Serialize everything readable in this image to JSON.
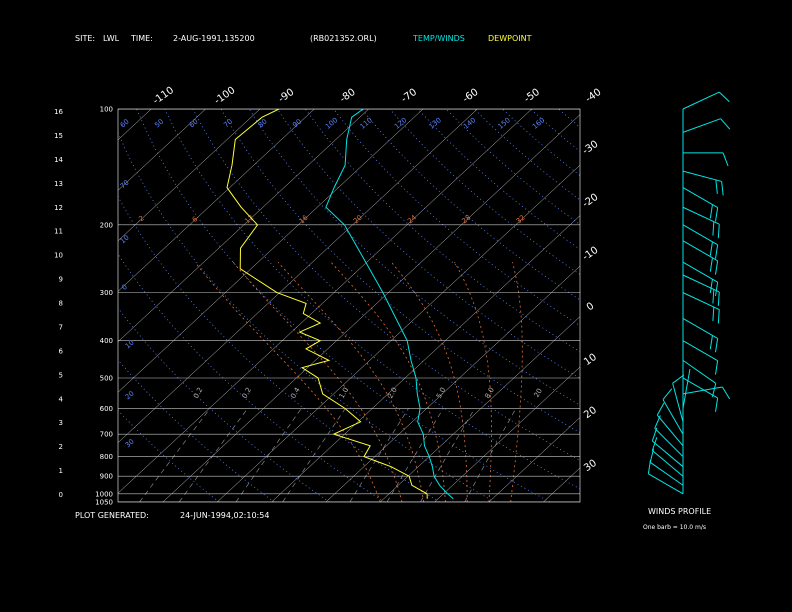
{
  "header": {
    "site_label": "SITE:",
    "site": "LWL",
    "time_label": "TIME:",
    "time": "2-AUG-1991,135200",
    "file": "(RB021352.ORL)",
    "temp_legend": "TEMP/WINDS",
    "dew_legend": "DEWPOINT"
  },
  "footer": {
    "generated_label": "PLOT GENERATED:",
    "generated": "24-JUN-1994,02:10:54",
    "winds_title": "WINDS PROFILE",
    "barb_note": "One barb = 10.0 m/s"
  },
  "colors": {
    "background": "#000000",
    "temp": "#00e5e5",
    "dewpoint": "#ffff33",
    "isobar": "#c8c8c8",
    "isotherm": "#c8c8c8",
    "dry_adiabat": "#5b84ff",
    "moist_adiabat": "#e07038",
    "mixing_ratio": "#9a9a9a",
    "text": "#ffffff"
  },
  "chart_data": {
    "type": "line",
    "pressure_ticks": [
      "100",
      "200",
      "300",
      "400",
      "500",
      "600",
      "700",
      "800",
      "900",
      "1000",
      "1050"
    ],
    "height_ticks": [
      "16",
      "15",
      "14",
      "13",
      "12",
      "11",
      "10",
      "9",
      "8",
      "7",
      "6",
      "5",
      "4",
      "3",
      "2",
      "1",
      "0"
    ],
    "isotherm_labels": [
      "-110",
      "-100",
      "-90",
      "-80",
      "-70",
      "-60",
      "-50",
      "-40"
    ],
    "right_temp_labels": [
      "-30",
      "-20",
      "-10",
      "0",
      "10",
      "20",
      "30"
    ],
    "dry_adiabat_labels": [
      "60",
      "50",
      "60",
      "70",
      "80",
      "90",
      "100",
      "110",
      "120",
      "130",
      "140",
      "150",
      "160",
      "70",
      "10",
      "0",
      "10",
      "20",
      "30"
    ],
    "moist_adiabat_labels": [
      "-2",
      "6",
      "12",
      "16",
      "20",
      "24",
      "28",
      "32"
    ],
    "mixing_ratio_labels": [
      "0.2",
      "0.2",
      "0.4",
      "1.0",
      "2.0",
      "5.0",
      "8.0",
      "20"
    ],
    "series": [
      {
        "name": "TEMP/WINDS",
        "values": [
          {
            "p": 1030,
            "t": 22.8
          },
          {
            "p": 1000,
            "t": 20.8
          },
          {
            "p": 950,
            "t": 17.6
          },
          {
            "p": 900,
            "t": 14.8
          },
          {
            "p": 850,
            "t": 12.6
          },
          {
            "p": 800,
            "t": 10.0
          },
          {
            "p": 750,
            "t": 7.0
          },
          {
            "p": 700,
            "t": 4.5
          },
          {
            "p": 650,
            "t": 1.0
          },
          {
            "p": 600,
            "t": -1.2
          },
          {
            "p": 550,
            "t": -4.6
          },
          {
            "p": 500,
            "t": -8.0
          },
          {
            "p": 450,
            "t": -12.4
          },
          {
            "p": 400,
            "t": -17.0
          },
          {
            "p": 350,
            "t": -23.5
          },
          {
            "p": 300,
            "t": -31.0
          },
          {
            "p": 250,
            "t": -40.2
          },
          {
            "p": 200,
            "t": -51.5
          },
          {
            "p": 180,
            "t": -58.4
          },
          {
            "p": 160,
            "t": -60.8
          },
          {
            "p": 140,
            "t": -63.2
          },
          {
            "p": 120,
            "t": -68.0
          },
          {
            "p": 105,
            "t": -71.5
          },
          {
            "p": 100,
            "t": -71.0
          }
        ]
      },
      {
        "name": "DEWPOINT",
        "values": [
          {
            "p": 1030,
            "t": 18.0
          },
          {
            "p": 1000,
            "t": 17.0
          },
          {
            "p": 950,
            "t": 12.5
          },
          {
            "p": 900,
            "t": 10.2
          },
          {
            "p": 850,
            "t": 5.0
          },
          {
            "p": 800,
            "t": -2.0
          },
          {
            "p": 750,
            "t": -3.0
          },
          {
            "p": 700,
            "t": -12.0
          },
          {
            "p": 650,
            "t": -9.5
          },
          {
            "p": 600,
            "t": -15.0
          },
          {
            "p": 550,
            "t": -22.0
          },
          {
            "p": 500,
            "t": -26.0
          },
          {
            "p": 470,
            "t": -31.0
          },
          {
            "p": 450,
            "t": -27.5
          },
          {
            "p": 420,
            "t": -34.0
          },
          {
            "p": 400,
            "t": -33.0
          },
          {
            "p": 380,
            "t": -38.5
          },
          {
            "p": 360,
            "t": -36.5
          },
          {
            "p": 340,
            "t": -41.5
          },
          {
            "p": 320,
            "t": -43.0
          },
          {
            "p": 300,
            "t": -50.5
          },
          {
            "p": 260,
            "t": -62.0
          },
          {
            "p": 230,
            "t": -66.0
          },
          {
            "p": 200,
            "t": -67.5
          },
          {
            "p": 180,
            "t": -74.0
          },
          {
            "p": 160,
            "t": -80.5
          },
          {
            "p": 140,
            "t": -84.0
          },
          {
            "p": 120,
            "t": -88.5
          },
          {
            "p": 105,
            "t": -88.0
          },
          {
            "p": 100,
            "t": -86.5
          }
        ]
      }
    ],
    "winds": [
      {
        "p": 1000,
        "dir": 120,
        "speed": 9
      },
      {
        "p": 950,
        "dir": 125,
        "speed": 10
      },
      {
        "p": 900,
        "dir": 130,
        "speed": 11
      },
      {
        "p": 850,
        "dir": 130,
        "speed": 12
      },
      {
        "p": 800,
        "dir": 135,
        "speed": 11
      },
      {
        "p": 750,
        "dir": 140,
        "speed": 9
      },
      {
        "p": 700,
        "dir": 150,
        "speed": 7
      },
      {
        "p": 650,
        "dir": 165,
        "speed": 5
      },
      {
        "p": 600,
        "dir": 190,
        "speed": 4
      },
      {
        "p": 550,
        "dir": 260,
        "speed": 6
      },
      {
        "p": 500,
        "dir": 300,
        "speed": 10
      },
      {
        "p": 450,
        "dir": 305,
        "speed": 12
      },
      {
        "p": 400,
        "dir": 300,
        "speed": 14
      },
      {
        "p": 350,
        "dir": 300,
        "speed": 18
      },
      {
        "p": 300,
        "dir": 295,
        "speed": 20
      },
      {
        "p": 270,
        "dir": 295,
        "speed": 22
      },
      {
        "p": 250,
        "dir": 300,
        "speed": 22
      },
      {
        "p": 220,
        "dir": 300,
        "speed": 24
      },
      {
        "p": 200,
        "dir": 300,
        "speed": 22
      },
      {
        "p": 180,
        "dir": 295,
        "speed": 20
      },
      {
        "p": 160,
        "dir": 300,
        "speed": 18
      },
      {
        "p": 145,
        "dir": 285,
        "speed": 16
      },
      {
        "p": 130,
        "dir": 270,
        "speed": 14
      },
      {
        "p": 115,
        "dir": 250,
        "speed": 10
      },
      {
        "p": 100,
        "dir": 245,
        "speed": 12
      }
    ],
    "xlim": [
      -40,
      45
    ],
    "ylim": [
      1050,
      100
    ],
    "grid": true,
    "legend": "top"
  }
}
